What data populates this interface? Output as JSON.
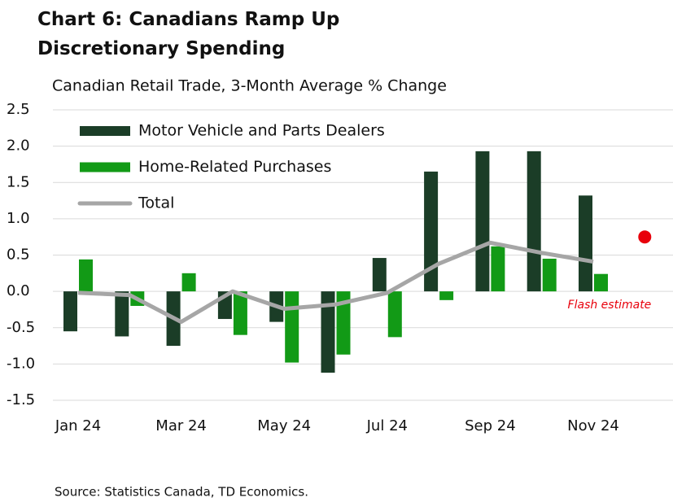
{
  "chart_data": {
    "type": "bar",
    "title": "Chart 6: Canadians Ramp Up Discretionary Spending",
    "subtitle": "Canadian Retail Trade, 3-Month Average % Change",
    "source": "Source: Statistics Canada, TD Economics.",
    "categories": [
      "Jan 24",
      null,
      "Mar 24",
      null,
      "May 24",
      null,
      "Jul 24",
      null,
      "Sep 24",
      null,
      "Nov 24",
      null
    ],
    "series": [
      {
        "name": "Motor Vehicle and Parts Dealers",
        "color": "#1b3d27",
        "type": "bar",
        "values": [
          -0.55,
          -0.62,
          -0.75,
          -0.38,
          -0.42,
          -1.12,
          0.46,
          1.65,
          1.93,
          1.93,
          1.32,
          null
        ]
      },
      {
        "name": "Home-Related Purchases",
        "color": "#129a16",
        "type": "bar",
        "values": [
          0.44,
          -0.2,
          0.25,
          -0.6,
          -0.98,
          -0.87,
          -0.63,
          -0.12,
          0.62,
          0.45,
          0.24,
          null
        ]
      },
      {
        "name": "Total",
        "color": "#a6a6a6",
        "type": "line",
        "values": [
          -0.02,
          -0.05,
          -0.42,
          0.0,
          -0.24,
          -0.18,
          -0.02,
          0.38,
          0.67,
          0.53,
          0.41,
          null
        ]
      }
    ],
    "flash_estimate": {
      "text": "Flash estimate",
      "color": "#e8000b",
      "values": [
        null,
        null,
        null,
        null,
        null,
        null,
        null,
        null,
        null,
        null,
        null,
        0.75
      ]
    },
    "ylim": [
      -1.5,
      2.5
    ],
    "yticks": [
      -1.5,
      {
        "value": -1,
        "label": "-1.0"
      },
      -0.5,
      {
        "value": 0,
        "label": "0.0"
      },
      0.5,
      {
        "value": 1,
        "label": "1.0"
      },
      1.5,
      {
        "value": 2,
        "label": "2.0"
      },
      2.5
    ],
    "grid": true,
    "legend": "upper-left"
  }
}
